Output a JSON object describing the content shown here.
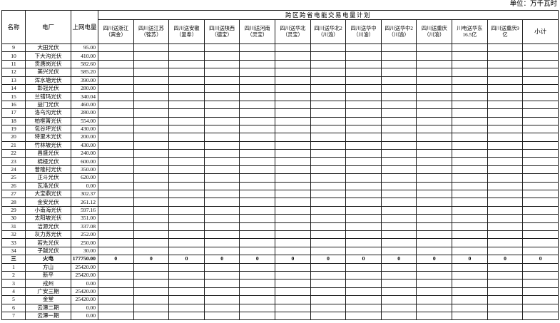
{
  "unit_label": "单位：万千瓦时",
  "table": {
    "headers": {
      "name": "名称",
      "plant": "电厂",
      "ongrid": "上网电量"
    },
    "group_header": "跨区跨省电能交易电量计划",
    "trade_columns": [
      {
        "line1": "四川送浙江",
        "line2": "（宾金）"
      },
      {
        "line1": "四川送江苏",
        "line2": "（锦苏）"
      },
      {
        "line1": "四川送安徽",
        "line2": "（复奉）"
      },
      {
        "line1": "四川送陕西",
        "line2": "（德宝）"
      },
      {
        "line1": "四川送河南",
        "line2": "（灵宝）"
      },
      {
        "line1": "四川送华北",
        "line2": "（灵宝）"
      },
      {
        "line1": "四川送华北2",
        "line2": "（川渝）"
      },
      {
        "line1": "四川送华中",
        "line2": "（川渝）"
      },
      {
        "line1": "四川送华中2",
        "line2": "（川渝）"
      },
      {
        "line1": "四川送重庆",
        "line2": "（川渝）"
      },
      {
        "line1": "川电送华东",
        "line2": "16.5亿"
      },
      {
        "line1": "四川送重庆9",
        "line2": "亿"
      },
      {
        "line1": "小计",
        "line2": ""
      }
    ],
    "rows": [
      {
        "no": "9",
        "name": "大田光伏",
        "value": "95.00",
        "zeros": false,
        "bold": false
      },
      {
        "no": "10",
        "name": "下大沟光伏",
        "value": "410.00",
        "zeros": false,
        "bold": false
      },
      {
        "no": "11",
        "name": "贡唐岗光伏",
        "value": "582.60",
        "zeros": false,
        "bold": false
      },
      {
        "no": "12",
        "name": "美兴光伏",
        "value": "585.20",
        "zeros": false,
        "bold": false
      },
      {
        "no": "13",
        "name": "浑水塘光伏",
        "value": "390.00",
        "zeros": false,
        "bold": false
      },
      {
        "no": "14",
        "name": "彰冠光伏",
        "value": "280.00",
        "zeros": false,
        "bold": false
      },
      {
        "no": "15",
        "name": "兰错玛光伏",
        "value": "340.04",
        "zeros": false,
        "bold": false
      },
      {
        "no": "16",
        "name": "益门光伏",
        "value": "460.00",
        "zeros": false,
        "bold": false
      },
      {
        "no": "17",
        "name": "洛乌沟光伏",
        "value": "280.00",
        "zeros": false,
        "bold": false
      },
      {
        "no": "18",
        "name": "柏框箐光伏",
        "value": "554.00",
        "zeros": false,
        "bold": false
      },
      {
        "no": "19",
        "name": "包谷坪光伏",
        "value": "430.00",
        "zeros": false,
        "bold": false
      },
      {
        "no": "20",
        "name": "特里木光伏",
        "value": "200.00",
        "zeros": false,
        "bold": false
      },
      {
        "no": "21",
        "name": "竹林坡光伏",
        "value": "430.00",
        "zeros": false,
        "bold": false
      },
      {
        "no": "22",
        "name": "昌盛光伏",
        "value": "240.00",
        "zeros": false,
        "bold": false
      },
      {
        "no": "23",
        "name": "棉桠光伏",
        "value": "600.00",
        "zeros": false,
        "bold": false
      },
      {
        "no": "24",
        "name": "普隆村光伏",
        "value": "350.00",
        "zeros": false,
        "bold": false
      },
      {
        "no": "25",
        "name": "正斗光伏",
        "value": "620.00",
        "zeros": false,
        "bold": false
      },
      {
        "no": "26",
        "name": "瓦洛光伏",
        "value": "0.00",
        "zeros": false,
        "bold": false
      },
      {
        "no": "27",
        "name": "大宝鼎光伏",
        "value": "302.37",
        "zeros": false,
        "bold": false
      },
      {
        "no": "28",
        "name": "金安光伏",
        "value": "261.12",
        "zeros": false,
        "bold": false
      },
      {
        "no": "29",
        "name": "小南海光伏",
        "value": "597.16",
        "zeros": false,
        "bold": false
      },
      {
        "no": "30",
        "name": "太阳坡光伏",
        "value": "351.00",
        "zeros": false,
        "bold": false
      },
      {
        "no": "31",
        "name": "洁源光伏",
        "value": "337.08",
        "zeros": false,
        "bold": false
      },
      {
        "no": "32",
        "name": "灰力苏光伏",
        "value": "252.00",
        "zeros": false,
        "bold": false
      },
      {
        "no": "33",
        "name": "若先光伏",
        "value": "250.00",
        "zeros": false,
        "bold": false
      },
      {
        "no": "34",
        "name": "子越光伏",
        "value": "30.00",
        "zeros": false,
        "bold": false
      },
      {
        "no": "三",
        "name": "火电",
        "value": "177750.00",
        "zeros": true,
        "bold": true
      },
      {
        "no": "1",
        "name": "方山",
        "value": "25420.00",
        "zeros": false,
        "bold": false
      },
      {
        "no": "2",
        "name": "新平",
        "value": "25420.00",
        "zeros": false,
        "bold": false
      },
      {
        "no": "3",
        "name": "戎州",
        "value": "0.00",
        "zeros": false,
        "bold": false
      },
      {
        "no": "4",
        "name": "广安三期",
        "value": "25420.00",
        "zeros": false,
        "bold": false
      },
      {
        "no": "5",
        "name": "金堂",
        "value": "25420.00",
        "zeros": false,
        "bold": false
      },
      {
        "no": "6",
        "name": "云潭二期",
        "value": "0.00",
        "zeros": false,
        "bold": false
      },
      {
        "no": "7",
        "name": "云潭一期",
        "value": "0.00",
        "zeros": false,
        "bold": false
      }
    ],
    "zero_value": "0"
  }
}
